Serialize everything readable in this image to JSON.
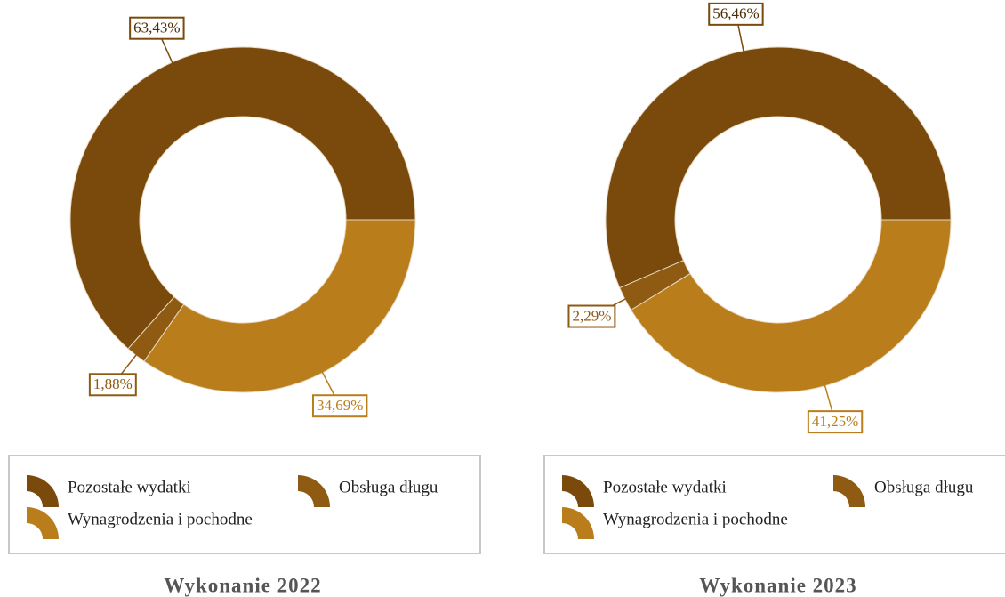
{
  "chart_data": [
    {
      "type": "pie",
      "title": "Wykonanie 2022",
      "categories": [
        "Pozostałe wydatki",
        "Obsługa długu",
        "Wynagrodzenia i pochodne"
      ],
      "values": [
        63.43,
        1.88,
        34.69
      ],
      "value_labels": [
        "63,43%",
        "1,88%",
        "34,69%"
      ],
      "colors": [
        "#7a4a0c",
        "#8f5a12",
        "#b97d1c"
      ]
    },
    {
      "type": "pie",
      "title": "Wykonanie 2023",
      "categories": [
        "Pozostałe wydatki",
        "Obsługa długu",
        "Wynagrodzenia i pochodne"
      ],
      "values": [
        56.46,
        2.29,
        41.25
      ],
      "value_labels": [
        "56,46%",
        "2,29%",
        "41,25%"
      ],
      "colors": [
        "#7a4a0c",
        "#8f5a12",
        "#b97d1c"
      ]
    }
  ]
}
